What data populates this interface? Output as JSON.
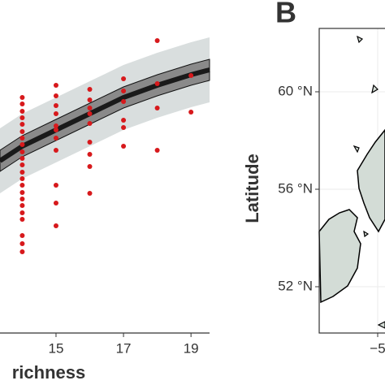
{
  "chart_data": [
    {
      "type": "scatter",
      "xlabel": "richness",
      "xlim": [
        13.34,
        19.55
      ],
      "ylim": [
        0,
        410
      ],
      "xticks": [
        15,
        17,
        19
      ],
      "color": "#d7191c",
      "x": [
        14,
        14,
        14,
        14,
        14,
        14,
        14,
        14,
        14,
        14,
        14,
        14,
        14,
        14,
        14,
        14,
        14,
        14,
        14,
        14,
        14,
        14,
        15,
        15,
        15,
        15,
        15,
        15,
        15,
        15,
        15,
        15,
        15,
        16,
        16,
        16,
        16,
        16,
        16,
        16,
        16,
        16,
        17,
        17,
        17,
        17,
        17,
        17,
        18,
        18,
        18,
        18,
        19,
        19
      ],
      "values": [
        290,
        282,
        273,
        265,
        257,
        248,
        240,
        232,
        223,
        215,
        207,
        198,
        190,
        182,
        173,
        165,
        157,
        148,
        140,
        120,
        110,
        100,
        305,
        292,
        280,
        270,
        255,
        250,
        240,
        225,
        182,
        160,
        132,
        300,
        287,
        277,
        270,
        258,
        235,
        220,
        205,
        172,
        313,
        298,
        285,
        262,
        253,
        230,
        360,
        307,
        277,
        225,
        317,
        272
      ],
      "fit": {
        "x": [
          13.34,
          14,
          15,
          16,
          17,
          18,
          19,
          19.55
        ],
        "values": [
          212,
          230,
          250,
          270,
          290,
          305,
          318,
          324
        ],
        "inner_lower": [
          199,
          217,
          237,
          257,
          277,
          292,
          305,
          311
        ],
        "inner_upper": [
          225,
          243,
          263,
          283,
          303,
          318,
          331,
          337
        ],
        "outer_lower": [
          172,
          190,
          210,
          230,
          250,
          265,
          278,
          284
        ],
        "outer_upper": [
          252,
          270,
          290,
          310,
          330,
          345,
          358,
          364
        ]
      }
    },
    {
      "type": "map",
      "panel_label": "B",
      "ylabel": "Latitude",
      "xlim": [
        -9,
        -4.5
      ],
      "ylim": [
        50.1,
        62.6
      ],
      "xticks": [
        {
          "value": -5,
          "label": "−5"
        }
      ],
      "yticks": [
        {
          "value": 60,
          "label": "60 °N"
        },
        {
          "value": 56,
          "label": "56 °N"
        },
        {
          "value": 52,
          "label": "52 °N"
        }
      ],
      "grid": true
    }
  ]
}
